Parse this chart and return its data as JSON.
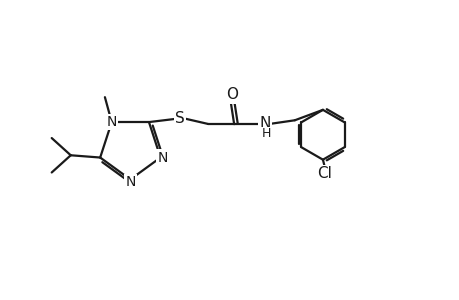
{
  "background_color": "#ffffff",
  "line_color": "#1a1a1a",
  "line_width": 1.6,
  "font_size": 10,
  "figsize": [
    4.6,
    3.0
  ],
  "dpi": 100,
  "xlim": [
    0,
    10
  ],
  "ylim": [
    0,
    6.5
  ]
}
